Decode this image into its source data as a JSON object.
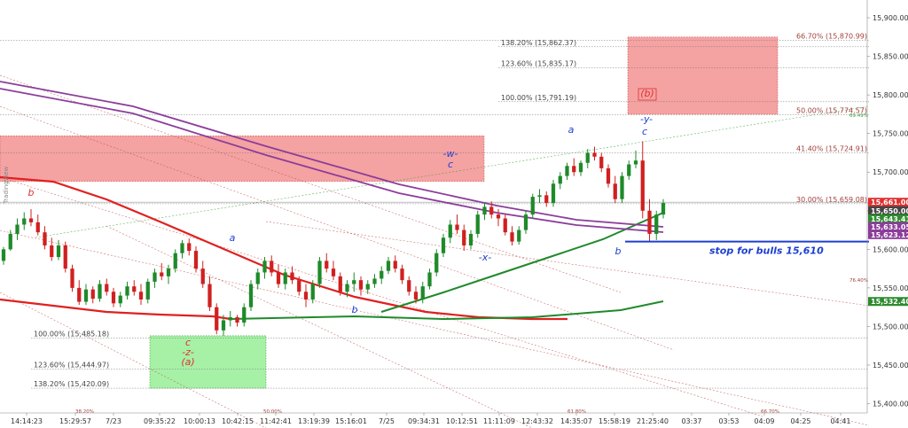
{
  "chart_data": {
    "type": "candlestick",
    "title": "",
    "xlabel": "",
    "ylabel": "",
    "ylim": [
      15388,
      15923
    ],
    "grid": false,
    "y_ticks": [
      "15,900.00",
      "15,850.00",
      "15,800.00",
      "15,750.00",
      "15,700.00",
      "15,650.00",
      "15,600.00",
      "15,550.00",
      "15,500.00",
      "15,450.00",
      "15,400.00"
    ],
    "y_tick_values": [
      15900,
      15850,
      15800,
      15750,
      15700,
      15650,
      15600,
      15550,
      15500,
      15450,
      15400
    ],
    "x_ticks": [
      "14:14:23",
      "15:29:57",
      "7/23",
      "09:35:22",
      "10:00:13",
      "10:42:15",
      "11:42:41",
      "13:19:39",
      "15:16:01",
      "7/25",
      "09:34:31",
      "10:12:51",
      "11:11:09",
      "12:43:32",
      "14:35:07",
      "15:58:19",
      "21:25:40",
      "03:37",
      "03:53",
      "04:09",
      "04:25",
      "04:41"
    ],
    "price_labels": [
      {
        "text": "15,661.00",
        "value": 15661,
        "color": "#e03030"
      },
      {
        "text": "15,650.00",
        "value": 15650,
        "color": "#444444"
      },
      {
        "text": "15,643.41",
        "value": 15643.41,
        "color": "#2e8b2e"
      },
      {
        "text": "15,633.05",
        "value": 15633.05,
        "color": "#8b3d9a"
      },
      {
        "text": "15,623.12",
        "value": 15623.12,
        "color": "#8b3d9a"
      },
      {
        "text": "15,532.40",
        "value": 15532.4,
        "color": "#2e8b2e"
      }
    ],
    "fib_levels": [
      {
        "label": "138.20% (15,862.37)",
        "value": 15862.37
      },
      {
        "label": "123.60% (15,835.17)",
        "value": 15835.17
      },
      {
        "label": "100.00% (15,791.19)",
        "value": 15791.19
      },
      {
        "label": "66.70% (15,870.99)",
        "value": 15870.99
      },
      {
        "label": "50.00% (15,774.57)",
        "value": 15774.57
      },
      {
        "label": "41.40% (15,724.91)",
        "value": 15724.91
      },
      {
        "label": "30.00% (15,659.08)",
        "value": 15659.08
      },
      {
        "label": "100.00% (15,485.18)",
        "value": 15485.18
      },
      {
        "label": "123.60% (15,444.97)",
        "value": 15444.97
      },
      {
        "label": "138.20% (15,420.09)",
        "value": 15420.09
      }
    ],
    "zones": [
      {
        "name": "upper-target-zone",
        "y_top": 15875,
        "y_bottom": 15775,
        "color": "#f28b8b"
      },
      {
        "name": "left-resistance-zone",
        "y_top": 15747,
        "y_bottom": 15688,
        "color": "#f28b8b"
      },
      {
        "name": "support-zone",
        "y_top": 15488,
        "y_bottom": 15420,
        "color": "#90ee90"
      }
    ],
    "stop_line": {
      "value": 15610,
      "label": "stop for bulls 15,610",
      "color": "#1e3fcf"
    },
    "wave_labels": [
      {
        "text": "b",
        "color": "#e03030"
      },
      {
        "text": "a",
        "color": "#1e3fcf"
      },
      {
        "text": "c",
        "color": "#e03030"
      },
      {
        "text": "-z-",
        "color": "#e03030"
      },
      {
        "text": "(a)",
        "color": "#e03030"
      },
      {
        "text": "b",
        "color": "#1e3fcf"
      },
      {
        "text": "-w-",
        "color": "#1e3fcf"
      },
      {
        "text": "c",
        "color": "#1e3fcf"
      },
      {
        "text": "-x-",
        "color": "#1e3fcf"
      },
      {
        "text": "a",
        "color": "#1e3fcf"
      },
      {
        "text": "b",
        "color": "#1e3fcf"
      },
      {
        "text": "-y-",
        "color": "#1e3fcf"
      },
      {
        "text": "c",
        "color": "#1e3fcf"
      },
      {
        "text": "(b)",
        "color": "#e03030"
      }
    ],
    "small_labels": [
      "38.20%",
      "50.00%",
      "61.80%",
      "66.70%",
      "76.40%",
      "69.49%"
    ],
    "watermark": "TradingView",
    "candles": [
      [
        15585,
        15603,
        15580,
        15600
      ],
      [
        15600,
        15625,
        15598,
        15620
      ],
      [
        15620,
        15640,
        15612,
        15632
      ],
      [
        15632,
        15648,
        15625,
        15640
      ],
      [
        15640,
        15652,
        15630,
        15635
      ],
      [
        15635,
        15645,
        15618,
        15622
      ],
      [
        15622,
        15630,
        15600,
        15605
      ],
      [
        15605,
        15615,
        15585,
        15590
      ],
      [
        15590,
        15612,
        15586,
        15605
      ],
      [
        15605,
        15610,
        15570,
        15575
      ],
      [
        15575,
        15580,
        15545,
        15550
      ],
      [
        15550,
        15560,
        15528,
        15532
      ],
      [
        15532,
        15555,
        15528,
        15548
      ],
      [
        15548,
        15552,
        15530,
        15536
      ],
      [
        15536,
        15560,
        15532,
        15555
      ],
      [
        15555,
        15562,
        15540,
        15545
      ],
      [
        15545,
        15550,
        15525,
        15530
      ],
      [
        15530,
        15545,
        15525,
        15540
      ],
      [
        15540,
        15558,
        15535,
        15552
      ],
      [
        15552,
        15560,
        15540,
        15545
      ],
      [
        15545,
        15555,
        15528,
        15535
      ],
      [
        15535,
        15562,
        15530,
        15558
      ],
      [
        15558,
        15575,
        15550,
        15570
      ],
      [
        15570,
        15582,
        15560,
        15565
      ],
      [
        15565,
        15580,
        15555,
        15575
      ],
      [
        15575,
        15600,
        15570,
        15595
      ],
      [
        15595,
        15612,
        15588,
        15608
      ],
      [
        15608,
        15614,
        15592,
        15598
      ],
      [
        15598,
        15604,
        15570,
        15575
      ],
      [
        15575,
        15585,
        15550,
        15555
      ],
      [
        15555,
        15565,
        15520,
        15525
      ],
      [
        15525,
        15530,
        15490,
        15495
      ],
      [
        15495,
        15515,
        15488,
        15508
      ],
      [
        15508,
        15520,
        15500,
        15512
      ],
      [
        15512,
        15515,
        15500,
        15505
      ],
      [
        15505,
        15530,
        15500,
        15525
      ],
      [
        15525,
        15560,
        15520,
        15555
      ],
      [
        15555,
        15575,
        15548,
        15570
      ],
      [
        15570,
        15590,
        15562,
        15585
      ],
      [
        15585,
        15592,
        15565,
        15570
      ],
      [
        15570,
        15580,
        15550,
        15555
      ],
      [
        15555,
        15575,
        15548,
        15570
      ],
      [
        15570,
        15578,
        15555,
        15560
      ],
      [
        15560,
        15565,
        15540,
        15545
      ],
      [
        15545,
        15555,
        15525,
        15535
      ],
      [
        15535,
        15560,
        15530,
        15555
      ],
      [
        15555,
        15590,
        15550,
        15585
      ],
      [
        15585,
        15595,
        15570,
        15575
      ],
      [
        15575,
        15585,
        15560,
        15565
      ],
      [
        15565,
        15570,
        15540,
        15545
      ],
      [
        15545,
        15560,
        15538,
        15555
      ],
      [
        15555,
        15570,
        15545,
        15560
      ],
      [
        15560,
        15565,
        15540,
        15548
      ],
      [
        15548,
        15560,
        15542,
        15555
      ],
      [
        15555,
        15568,
        15550,
        15562
      ],
      [
        15562,
        15578,
        15555,
        15572
      ],
      [
        15572,
        15590,
        15568,
        15585
      ],
      [
        15585,
        15592,
        15570,
        15575
      ],
      [
        15575,
        15580,
        15555,
        15560
      ],
      [
        15560,
        15565,
        15540,
        15545
      ],
      [
        15545,
        15552,
        15530,
        15535
      ],
      [
        15535,
        15558,
        15530,
        15552
      ],
      [
        15552,
        15575,
        15548,
        15570
      ],
      [
        15570,
        15600,
        15565,
        15595
      ],
      [
        15595,
        15620,
        15590,
        15615
      ],
      [
        15615,
        15638,
        15608,
        15632
      ],
      [
        15632,
        15645,
        15620,
        15625
      ],
      [
        15625,
        15632,
        15598,
        15605
      ],
      [
        15605,
        15625,
        15600,
        15620
      ],
      [
        15620,
        15650,
        15615,
        15645
      ],
      [
        15645,
        15660,
        15638,
        15655
      ],
      [
        15655,
        15662,
        15640,
        15645
      ],
      [
        15645,
        15652,
        15630,
        15640
      ],
      [
        15640,
        15645,
        15618,
        15622
      ],
      [
        15622,
        15630,
        15605,
        15610
      ],
      [
        15610,
        15630,
        15606,
        15625
      ],
      [
        15625,
        15650,
        15620,
        15645
      ],
      [
        15645,
        15672,
        15640,
        15668
      ],
      [
        15668,
        15678,
        15660,
        15670
      ],
      [
        15670,
        15675,
        15655,
        15660
      ],
      [
        15660,
        15690,
        15655,
        15685
      ],
      [
        15685,
        15700,
        15678,
        15695
      ],
      [
        15695,
        15712,
        15690,
        15708
      ],
      [
        15708,
        15718,
        15695,
        15700
      ],
      [
        15700,
        15715,
        15695,
        15712
      ],
      [
        15712,
        15730,
        15705,
        15725
      ],
      [
        15725,
        15733,
        15715,
        15720
      ],
      [
        15720,
        15725,
        15700,
        15705
      ],
      [
        15705,
        15710,
        15680,
        15685
      ],
      [
        15685,
        15695,
        15660,
        15665
      ],
      [
        15665,
        15700,
        15660,
        15695
      ],
      [
        15695,
        15715,
        15690,
        15710
      ],
      [
        15710,
        15728,
        15705,
        15715
      ],
      [
        15715,
        15740,
        15640,
        15650
      ],
      [
        15650,
        15665,
        15610,
        15620
      ],
      [
        15620,
        15650,
        15612,
        15645
      ],
      [
        15645,
        15665,
        15640,
        15660
      ]
    ]
  }
}
